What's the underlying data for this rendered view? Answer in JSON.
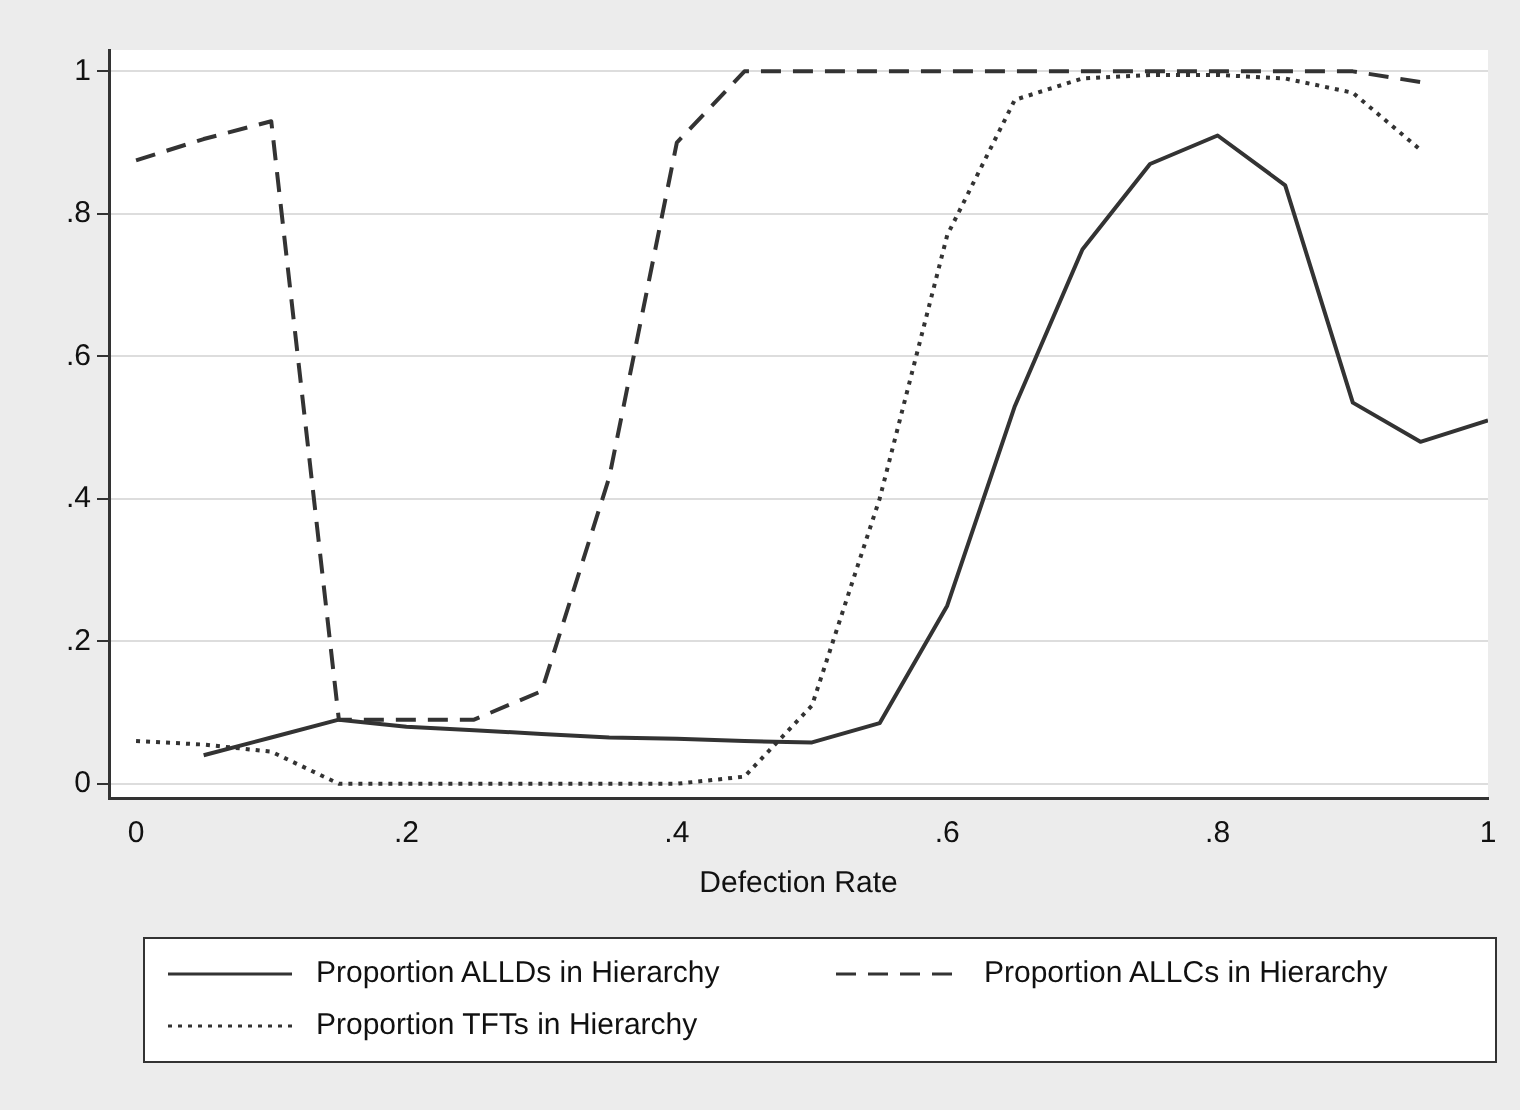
{
  "chart_data": {
    "type": "line",
    "xlabel": "Defection Rate",
    "legend": "bottom",
    "grid": "y",
    "marker": "none",
    "xlim": [
      -0.02,
      1.0
    ],
    "xticks": [
      {
        "value": 0,
        "label": "0"
      },
      {
        "value": 0.2,
        "label": ".2"
      },
      {
        "value": 0.4,
        "label": ".4"
      },
      {
        "value": 0.6,
        "label": ".6"
      },
      {
        "value": 0.8,
        "label": ".8"
      },
      {
        "value": 1,
        "label": "1"
      }
    ],
    "ylim": [
      -0.02,
      1.03
    ],
    "yticks": [
      {
        "value": 0,
        "label": "0"
      },
      {
        "value": 0.2,
        "label": ".2"
      },
      {
        "value": 0.4,
        "label": ".4"
      },
      {
        "value": 0.6,
        "label": ".6"
      },
      {
        "value": 0.8,
        "label": ".8"
      },
      {
        "value": 1,
        "label": "1"
      }
    ],
    "series": [
      {
        "name": "Proportion ALLDs in Hierarchy",
        "color": "#333333",
        "line_style": "solid",
        "x": [
          0.05,
          0.1,
          0.15,
          0.2,
          0.25,
          0.3,
          0.35,
          0.4,
          0.45,
          0.5,
          0.55,
          0.6,
          0.65,
          0.7,
          0.75,
          0.8,
          0.85,
          0.9,
          0.95,
          1
        ],
        "values": [
          0.04,
          0.065,
          0.09,
          0.08,
          0.075,
          0.07,
          0.065,
          0.063,
          0.06,
          0.058,
          0.085,
          0.25,
          0.53,
          0.75,
          0.87,
          0.91,
          0.84,
          0.535,
          0.48,
          0.51
        ]
      },
      {
        "name": "Proportion ALLCs in Hierarchy",
        "color": "#333333",
        "line_style": "dashed",
        "x": [
          0,
          0.05,
          0.1,
          0.15,
          0.2,
          0.25,
          0.3,
          0.35,
          0.4,
          0.45,
          0.5,
          0.55,
          0.6,
          0.65,
          0.7,
          0.75,
          0.8,
          0.85,
          0.9,
          0.95
        ],
        "values": [
          0.875,
          0.905,
          0.93,
          0.09,
          0.09,
          0.09,
          0.13,
          0.43,
          0.9,
          1,
          1,
          1,
          1,
          1,
          1,
          1,
          1,
          1,
          1,
          0.985
        ]
      },
      {
        "name": "Proportion TFTs in Hierarchy",
        "color": "#333333",
        "line_style": "dotted",
        "x": [
          0,
          0.05,
          0.1,
          0.15,
          0.2,
          0.25,
          0.3,
          0.35,
          0.4,
          0.45,
          0.5,
          0.55,
          0.6,
          0.65,
          0.7,
          0.75,
          0.8,
          0.85,
          0.9,
          0.95
        ],
        "values": [
          0.06,
          0.055,
          0.045,
          0,
          0,
          0,
          0,
          0,
          0,
          0.01,
          0.11,
          0.4,
          0.77,
          0.96,
          0.99,
          0.995,
          0.995,
          0.99,
          0.97,
          0.89
        ]
      }
    ]
  }
}
